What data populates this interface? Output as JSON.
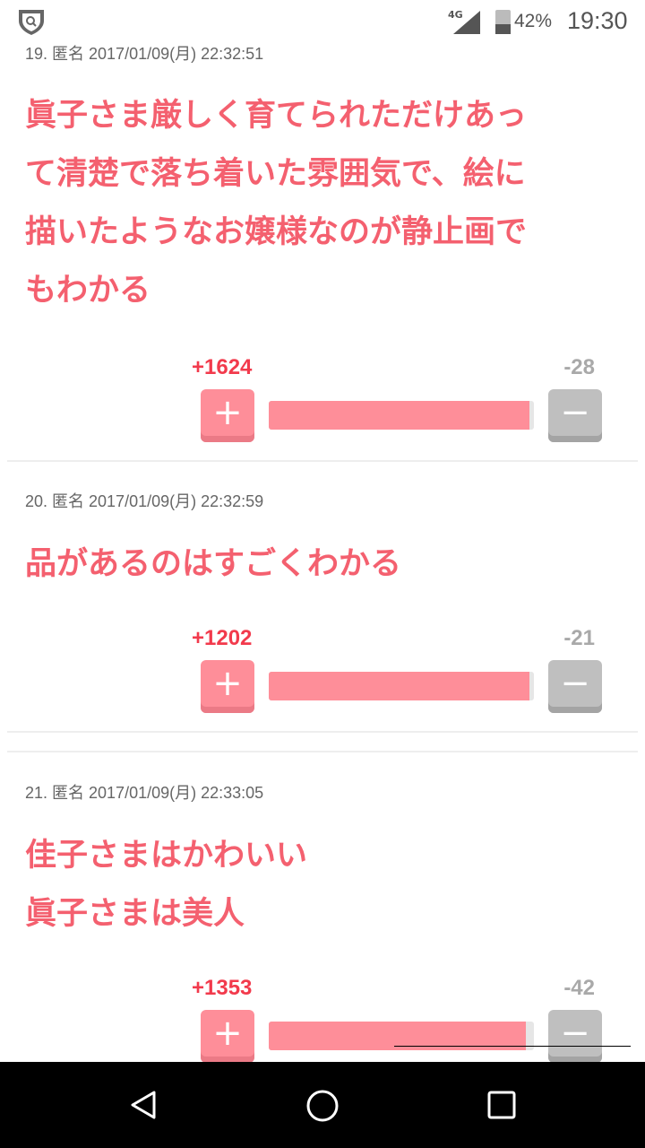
{
  "status_bar": {
    "network": "4G",
    "battery": "42%",
    "battery_level": 0.42,
    "time": "19:30",
    "app_icon": "shield-search-icon"
  },
  "comments": [
    {
      "meta": "19. 匿名 2017/01/09(月) 22:32:51",
      "lines": [
        "眞子さま厳しく育てられただけあっ",
        "て清楚で落ち着いた雰囲気で、絵に",
        "描いたようなお嬢様なのが静止画で",
        "もわかる"
      ],
      "plus": "+1624",
      "minus": "-28",
      "plus_ratio": 0.983
    },
    {
      "meta": "20. 匿名 2017/01/09(月) 22:32:59",
      "lines": [
        "品があるのはすごくわかる"
      ],
      "plus": "+1202",
      "minus": "-21",
      "plus_ratio": 0.983
    },
    {
      "meta": "21. 匿名 2017/01/09(月) 22:33:05",
      "lines": [
        "佳子さまはかわいい",
        "眞子さまは美人"
      ],
      "plus": "+1353",
      "minus": "-42",
      "plus_ratio": 0.97
    }
  ],
  "buttons": {
    "plus": "+",
    "minus": "−"
  },
  "colors": {
    "text": "#f4606f",
    "plus": "#fe8e99",
    "minus": "#bfbfbf"
  },
  "nav": {
    "back": "back-icon",
    "home": "home-icon",
    "recents": "recents-icon"
  }
}
